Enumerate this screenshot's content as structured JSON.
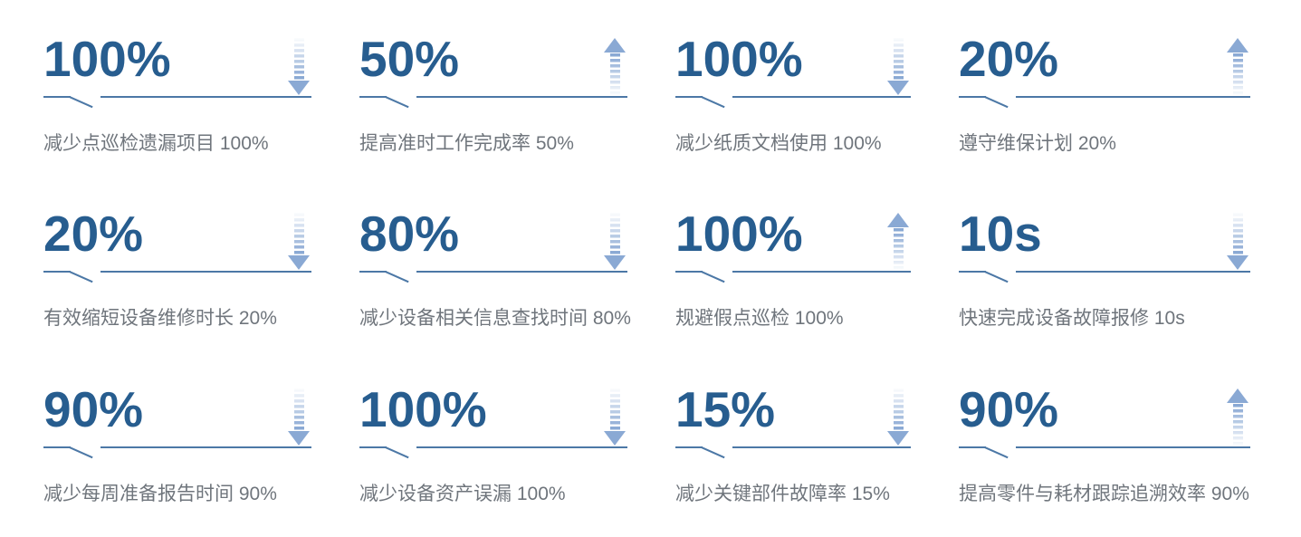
{
  "page": {
    "background": "#ffffff"
  },
  "colors": {
    "value_blue": "#275d8f",
    "line_blue": "#4c78a6",
    "arrow_blue": "#8aa9d4",
    "caption_gray": "#6f757c"
  },
  "stats": {
    "items": [
      {
        "value": "100%",
        "arrow": "down",
        "caption": "减少点巡检遗漏项目 100%"
      },
      {
        "value": "50%",
        "arrow": "up",
        "caption": "提高准时工作完成率 50%"
      },
      {
        "value": "100%",
        "arrow": "down",
        "caption": "减少纸质文档使用 100%"
      },
      {
        "value": "20%",
        "arrow": "up",
        "caption": "遵守维保计划 20%"
      },
      {
        "value": "20%",
        "arrow": "down",
        "caption": "有效缩短设备维修时长 20%"
      },
      {
        "value": "80%",
        "arrow": "down",
        "caption": "减少设备相关信息查找时间 80%"
      },
      {
        "value": "100%",
        "arrow": "up",
        "caption": "规避假点巡检 100%"
      },
      {
        "value": "10s",
        "arrow": "down",
        "caption": "快速完成设备故障报修 10s"
      },
      {
        "value": "90%",
        "arrow": "down",
        "caption": "减少每周准备报告时间 90%"
      },
      {
        "value": "100%",
        "arrow": "down",
        "caption": "减少设备资产误漏 100%"
      },
      {
        "value": "15%",
        "arrow": "down",
        "caption": "减少关键部件故障率 15%"
      },
      {
        "value": "90%",
        "arrow": "up",
        "caption": "提高零件与耗材跟踪追溯效率 90%"
      }
    ]
  }
}
